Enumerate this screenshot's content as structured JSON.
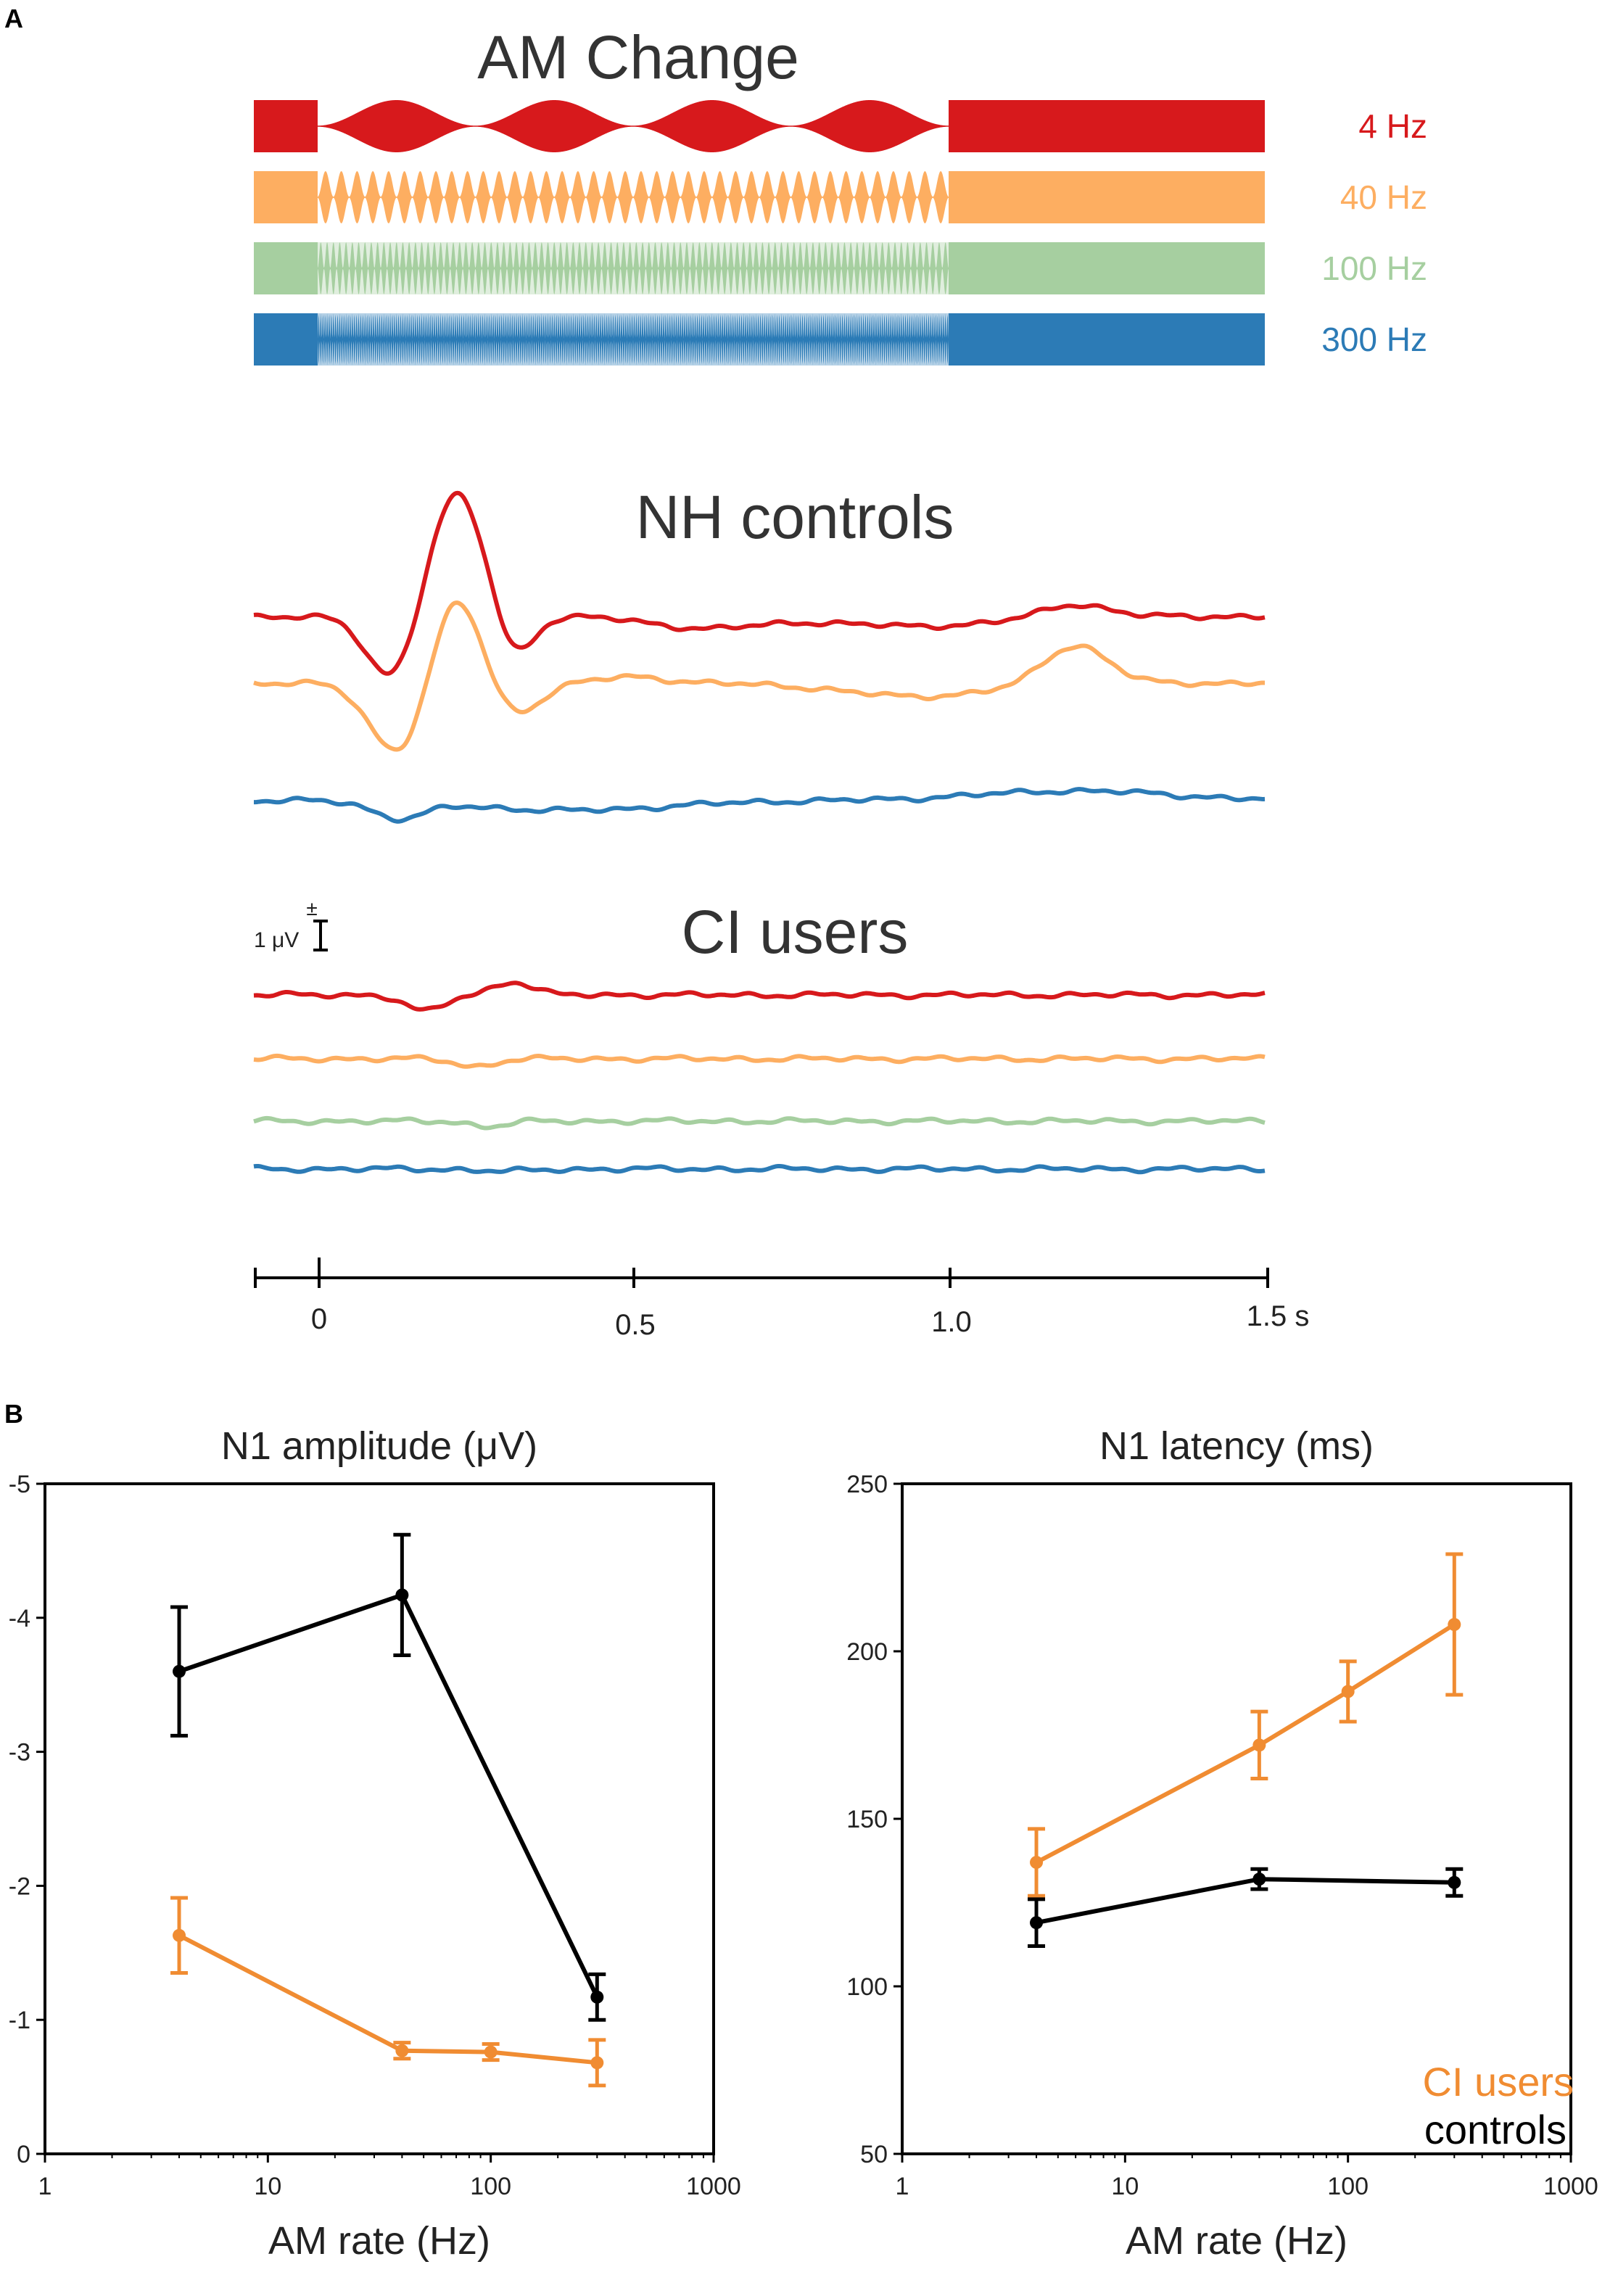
{
  "panel_a": {
    "letter": "A",
    "am_title": "AM Change",
    "rates": [
      {
        "label": "4 Hz",
        "color": "#d7191c",
        "hz": 4
      },
      {
        "label": "40 Hz",
        "color": "#fdae61",
        "hz": 40
      },
      {
        "label": "100 Hz",
        "color": "#a6cfa0",
        "hz": 100
      },
      {
        "label": "300 Hz",
        "color": "#2c7bb6",
        "hz": 300
      }
    ],
    "nh_title": "NH controls",
    "ci_title": "CI users",
    "scale_bar_label": "1 μV",
    "scale_bar_sign": "±",
    "time_ticks": [
      "0",
      "0.5",
      "1.0",
      "1.5 s"
    ]
  },
  "panel_b": {
    "letter": "B",
    "legend": {
      "ci_label": "CI users",
      "controls_label": "controls",
      "ci_color": "#f08c32",
      "controls_color": "#000000"
    }
  },
  "chart_data": [
    {
      "type": "line",
      "title": "N1 amplitude (μV)",
      "xlabel": "AM rate (Hz)",
      "ylabel": "",
      "xscale": "log",
      "xlim": [
        1,
        1000
      ],
      "ylim": [
        0,
        -5
      ],
      "y_inverted": true,
      "x_ticks": [
        "1",
        "10",
        "100",
        "1000"
      ],
      "y_ticks": [
        "0",
        "-1",
        "-2",
        "-3",
        "-4",
        "-5"
      ],
      "series": [
        {
          "name": "controls",
          "color": "#000000",
          "x": [
            4,
            40,
            300
          ],
          "values": [
            -3.6,
            -4.17,
            -1.17
          ],
          "errors": [
            0.48,
            0.45,
            0.17
          ]
        },
        {
          "name": "CI users",
          "color": "#f08c32",
          "x": [
            4,
            40,
            100,
            300
          ],
          "values": [
            -1.63,
            -0.77,
            -0.76,
            -0.68
          ],
          "errors": [
            0.28,
            0.06,
            0.06,
            0.17
          ]
        }
      ]
    },
    {
      "type": "line",
      "title": "N1 latency (ms)",
      "xlabel": "AM rate (Hz)",
      "ylabel": "",
      "xscale": "log",
      "xlim": [
        1,
        1000
      ],
      "ylim": [
        50,
        250
      ],
      "x_ticks": [
        "1",
        "10",
        "100",
        "1000"
      ],
      "y_ticks": [
        "50",
        "100",
        "150",
        "200",
        "250"
      ],
      "series": [
        {
          "name": "CI users",
          "color": "#f08c32",
          "x": [
            4,
            40,
            100,
            300
          ],
          "values": [
            137,
            172,
            188,
            208
          ],
          "errors": [
            10,
            10,
            9,
            21
          ]
        },
        {
          "name": "controls",
          "color": "#000000",
          "x": [
            4,
            40,
            300
          ],
          "values": [
            119,
            132,
            131
          ],
          "errors": [
            7,
            3,
            4
          ]
        }
      ]
    }
  ]
}
